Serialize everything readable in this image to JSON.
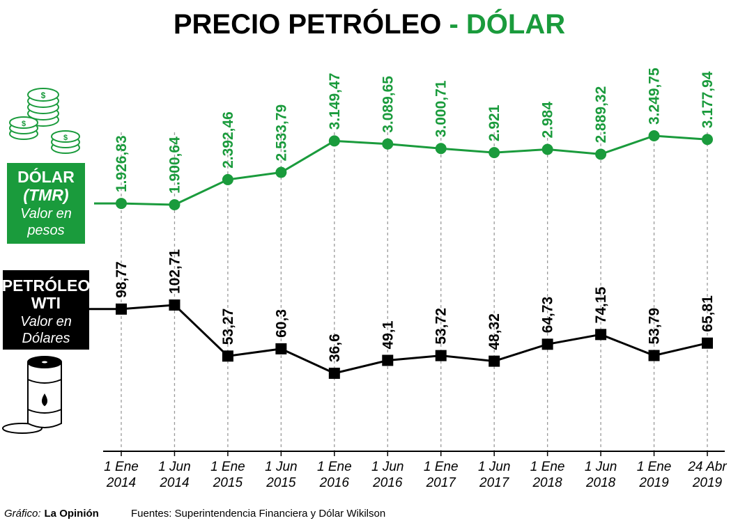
{
  "colors": {
    "green": "#1a9b3c",
    "black": "#000000",
    "grid": "#9a9a9a"
  },
  "header": {
    "title_main": "PRECIO PETRÓLEO",
    "title_sep": " - ",
    "title_accent": "DÓLAR"
  },
  "legend": {
    "dolar": {
      "line1": "DÓLAR",
      "line2": "(TMR)",
      "line3": "Valor en",
      "line4": "pesos",
      "icon": "coins-icon"
    },
    "petroleo": {
      "line1": "PETRÓLEO",
      "line2": "WTI",
      "line3": "Valor en",
      "line4": "Dólares",
      "icon": "oil-barrel-icon"
    }
  },
  "footer": {
    "credit_label": "Gráfico:",
    "credit_name": "La Opinión",
    "sources": "Fuentes: Superintendencia Financiera y Dólar Wikilson"
  },
  "chart_data": {
    "type": "line",
    "title": "PRECIO PETRÓLEO - DÓLAR",
    "categories": [
      [
        "1 Ene",
        "2014"
      ],
      [
        "1 Jun",
        "2014"
      ],
      [
        "1 Ene",
        "2015"
      ],
      [
        "1 Jun",
        "2015"
      ],
      [
        "1 Ene",
        "2016"
      ],
      [
        "1 Jun",
        "2016"
      ],
      [
        "1 Ene",
        "2017"
      ],
      [
        "1 Jun",
        "2017"
      ],
      [
        "1 Ene",
        "2018"
      ],
      [
        "1 Jun",
        "2018"
      ],
      [
        "1 Ene",
        "2019"
      ],
      [
        "24 Abr",
        "2019"
      ]
    ],
    "series": [
      {
        "name": "Dólar (TMR) - Valor en pesos",
        "values": [
          1926.83,
          1900.64,
          2392.46,
          2533.79,
          3149.47,
          3089.65,
          3000.71,
          2921,
          2984,
          2889.32,
          3249.75,
          3177.94
        ],
        "labels": [
          "1.926,83",
          "1.900,64",
          "2.392,46",
          "2.533,79",
          "3.149,47",
          "3.089,65",
          "3.000,71",
          "2.921",
          "2.984",
          "2.889,32",
          "3.249,75",
          "3.177,94"
        ],
        "color": "#1a9b3c",
        "marker": "circle"
      },
      {
        "name": "Petróleo WTI - Valor en Dólares",
        "values": [
          98.77,
          102.71,
          53.27,
          60.3,
          36.6,
          49.1,
          53.72,
          48.32,
          64.73,
          74.15,
          53.79,
          65.81
        ],
        "labels": [
          "98,77",
          "102,71",
          "53,27",
          "60,3",
          "36,6",
          "49,1",
          "53,72",
          "48,32",
          "64,73",
          "74,15",
          "53,79",
          "65,81"
        ],
        "color": "#000000",
        "marker": "square"
      }
    ]
  }
}
